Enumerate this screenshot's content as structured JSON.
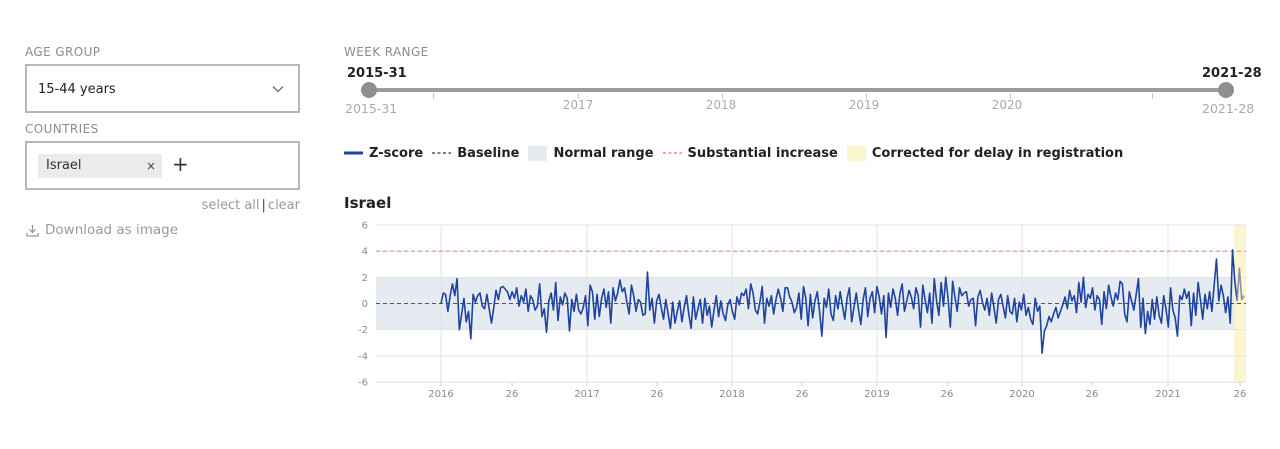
{
  "age_group": {
    "label": "AGE GROUP",
    "selected": "15-44 years"
  },
  "countries": {
    "label": "COUNTRIES",
    "selected_tags": [
      "Israel"
    ],
    "remove_symbol": "×",
    "add_symbol": "+",
    "select_all": "select all",
    "separator": "|",
    "clear": "clear"
  },
  "download": {
    "label": "Download as image"
  },
  "week_range": {
    "label": "WEEK RANGE",
    "start_value": "2015-31",
    "end_value": "2021-28",
    "min_label": "2015-31",
    "max_label": "2021-28",
    "year_labels": [
      "2017",
      "2018",
      "2019",
      "2020"
    ]
  },
  "legend": {
    "items": [
      {
        "label": "Z-score",
        "color": "#1f44a0",
        "style": "solid-line"
      },
      {
        "label": "Baseline",
        "color": "#555555",
        "style": "dashed-line"
      },
      {
        "label": "Normal range",
        "color": "#e6ebf2",
        "style": "box"
      },
      {
        "label": "Substantial increase",
        "color": "#f08a8a",
        "style": "dashed-line"
      },
      {
        "label": "Corrected for delay in registration",
        "color": "#fcf6cf",
        "style": "box"
      }
    ]
  },
  "chart_data": {
    "type": "line",
    "title": "Israel",
    "xlabel": "",
    "ylabel": "",
    "ylim": [
      -6,
      6
    ],
    "y_ticks": [
      6,
      4,
      2,
      0,
      -2,
      -4,
      -6
    ],
    "x_tick_labels": [
      "2016",
      "26",
      "2017",
      "26",
      "2018",
      "26",
      "2019",
      "26",
      "2020",
      "26",
      "2021",
      "26"
    ],
    "x_start": "2015-31",
    "x_end": "2021-28",
    "baseline": 0,
    "normal_range": [
      -2,
      2
    ],
    "substantial_increase": 4,
    "corrected_region_start": "2021-25",
    "grid": true,
    "series": [
      {
        "name": "Z-score",
        "color": "#1f44a0",
        "values": [
          0,
          0.8,
          0.7,
          -0.6,
          0.6,
          1.5,
          0.6,
          1.9,
          -2.0,
          -0.8,
          0.4,
          -1.4,
          -0.6,
          -2.7,
          0.7,
          0.1,
          0.6,
          0.8,
          -0.2,
          -0.4,
          0.7,
          -0.4,
          -1.5,
          -0.3,
          1.0,
          0.3,
          1.2,
          1.3,
          1.1,
          0.9,
          0.3,
          0.9,
          0.4,
          1.2,
          -0.2,
          0.6,
          0.1,
          1.1,
          -0.6,
          0.6,
          0.3,
          -0.5,
          -0.2,
          1.5,
          -1.0,
          -0.4,
          -2.2,
          0.2,
          0.8,
          -0.5,
          1.6,
          -1.3,
          0.5,
          -0.1,
          0.8,
          0.4,
          -2.1,
          0.3,
          -0.6,
          0.7,
          -0.5,
          -0.8,
          -0.3,
          0.6,
          -1.7,
          1.4,
          0.9,
          -1.2,
          0.7,
          -1.0,
          0.4,
          1.1,
          -0.3,
          0.9,
          -1.5,
          1.2,
          0.2,
          0.8,
          1.8,
          0.9,
          1.2,
          0.1,
          -0.8,
          1.4,
          0.6,
          -0.6,
          0.3,
          0.1,
          -0.9,
          -0.8,
          2.4,
          -0.5,
          0.4,
          -1.5,
          0.2,
          0.7,
          -0.3,
          -1.2,
          0.3,
          -0.8,
          -1.9,
          0.1,
          -1.5,
          -0.6,
          0.2,
          -1.4,
          -0.3,
          0.6,
          -0.8,
          -1.9,
          0.5,
          -1.2,
          -0.4,
          0.3,
          -1.5,
          0.4,
          -0.9,
          -0.2,
          -1.8,
          -0.5,
          0.6,
          -1.0,
          0.2,
          -0.8,
          -1.3,
          -0.1,
          0.3,
          -0.6,
          -1.2,
          0.5,
          -0.1,
          0.8,
          0.6,
          1.1,
          -0.4,
          1.5,
          0.8,
          -0.5,
          -0.8,
          0.1,
          1.3,
          -1.5,
          0.4,
          -0.2,
          0.6,
          -0.8,
          0.3,
          1.1,
          0.4,
          -0.6,
          1.2,
          1.2,
          0.5,
          0.1,
          -0.7,
          -0.3,
          0.8,
          -1.2,
          1.3,
          0.4,
          -1.7,
          0.7,
          -1.1,
          0.2,
          0.9,
          -0.6,
          -2.5,
          0.4,
          -0.3,
          1.1,
          -0.8,
          -1.3,
          0.6,
          -0.4,
          0.9,
          -0.2,
          -1.2,
          0.4,
          1.2,
          -1.4,
          -0.3,
          0.8,
          -0.5,
          -1.6,
          0.3,
          1.2,
          -1.0,
          0.4,
          0.9,
          -0.7,
          1.3,
          0.5,
          -0.8,
          0.6,
          -2.6,
          0.8,
          -0.3,
          1.1,
          0.4,
          -0.9,
          0.7,
          1.5,
          -0.6,
          0.2,
          1.0,
          0.5,
          -0.4,
          1.2,
          0.6,
          -1.8,
          1.4,
          0.3,
          -0.7,
          0.8,
          -1.5,
          1.9,
          0.2,
          -0.9,
          1.6,
          -0.2,
          2.0,
          0.4,
          -1.8,
          1.7,
          0.5,
          -0.6,
          1.2,
          0.6,
          0.8,
          0.9,
          -0.2,
          0.3,
          0.4,
          -1.7,
          0.5,
          1.0,
          0.1,
          -0.5,
          0.4,
          -0.9,
          0.8,
          -0.3,
          -1.5,
          0.3,
          0.7,
          -0.2,
          -1.1,
          0.6,
          -0.6,
          -0.8,
          0.4,
          -1.4,
          0.1,
          -0.5,
          0.7,
          -0.9,
          -0.3,
          -1.2,
          -1.6,
          0.4,
          -0.6,
          -0.2,
          -3.8,
          -2.1,
          -1.7,
          -1.0,
          -1.4,
          -0.8,
          -0.3,
          -1.1,
          -0.6,
          -0.1,
          0.5,
          -0.4,
          1.0,
          0.2,
          0.6,
          -0.7,
          1.6,
          0.1,
          2.0,
          -0.3,
          0.7,
          0.4,
          1.2,
          -0.5,
          0.6,
          0.3,
          -1.6,
          0.9,
          -0.4,
          1.4,
          0.5,
          -0.2,
          0.8,
          0.3,
          1.7,
          1.5,
          -0.8,
          -1.4,
          0.9,
          0.2,
          -0.5,
          0.7,
          1.9,
          -1.8,
          0.4,
          -2.3,
          -0.6,
          -1.6,
          0.3,
          -1.2,
          0.5,
          -0.9,
          -1.5,
          0.6,
          -0.4,
          -1.8,
          1.2,
          -0.5,
          -1.1,
          -2.5,
          0.6,
          0.3,
          1.1,
          0.4,
          0.9,
          -1.7,
          0.8,
          -0.9,
          1.6,
          0.3,
          -1.2,
          0.7,
          -0.4,
          0.9,
          -0.6,
          1.4,
          3.4,
          0.2,
          1.4,
          0.6,
          -0.7,
          0.5,
          -1.5,
          4.1,
          1.7,
          0.2,
          2.7,
          0.3,
          0.6
        ]
      }
    ]
  }
}
